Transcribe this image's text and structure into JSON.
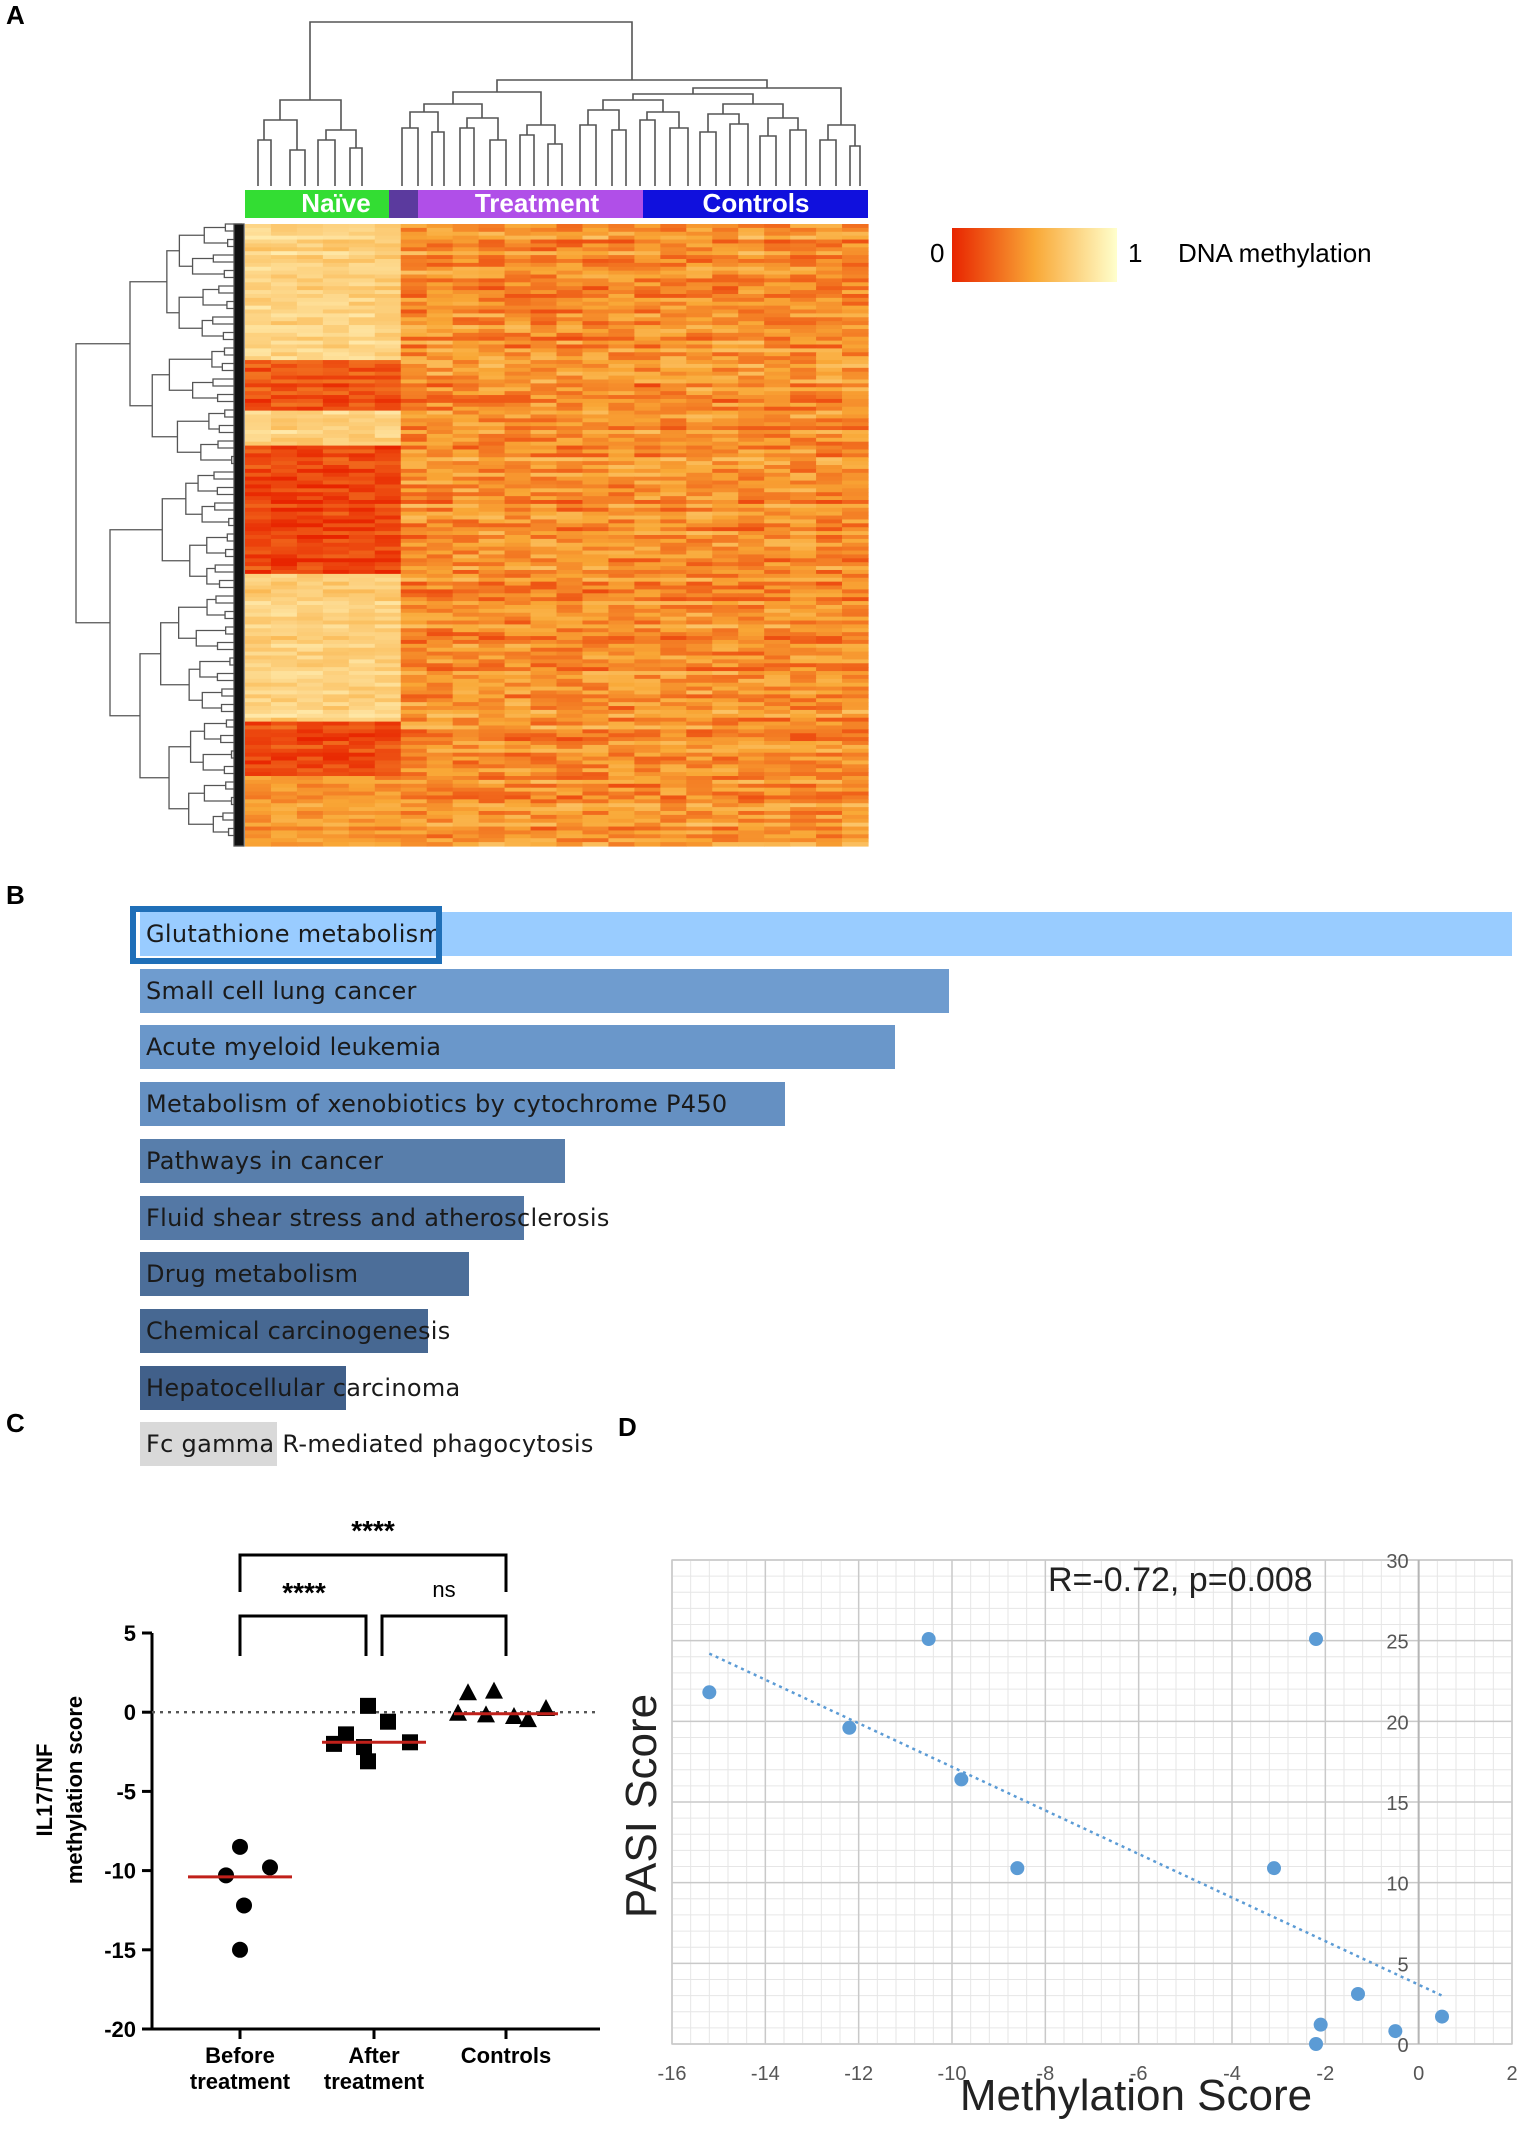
{
  "panels": {
    "a": "A",
    "b": "B",
    "c": "C",
    "d": "D"
  },
  "chart_data": [
    {
      "type": "heatmap",
      "panel": "A",
      "groups": [
        "Naïve",
        "Treatment",
        "Controls"
      ],
      "group_colors": [
        "#33dd33",
        "#b04fe8",
        "#1010dd"
      ],
      "legend": {
        "min_label": "0",
        "max_label": "1",
        "title": "DNA methylation"
      },
      "colorscale": [
        "#e82400",
        "#f9a836",
        "#ffff66"
      ]
    },
    {
      "type": "bar",
      "panel": "B",
      "orientation": "horizontal",
      "categories": [
        "Glutathione metabolism",
        "Small cell lung cancer",
        "Acute myeloid leukemia",
        "Metabolism of xenobiotics by cytochrome P450",
        "Pathways in cancer",
        "Fluid shear stress and atherosclerosis",
        "Drug metabolism",
        "Chemical carcinogenesis",
        "Hepatocellular carcinoma",
        "Fc gamma R-mediated phagocytosis"
      ],
      "values": [
        100,
        59,
        55,
        47,
        31,
        28,
        24,
        21,
        15,
        10
      ],
      "colors": [
        "#99ccff",
        "#6f9ccf",
        "#6a97ca",
        "#6590c2",
        "#587eab",
        "#5478a5",
        "#4c6e99",
        "#476892",
        "#41608a",
        "#d9d9d9"
      ],
      "highlighted": "Glutathione metabolism"
    },
    {
      "type": "scatter",
      "panel": "C",
      "ylabel_line1": "IL17/TNF",
      "ylabel_line2": "methylation score",
      "ylim": [
        -20,
        5
      ],
      "yticks": [
        "5",
        "0",
        "-5",
        "-10",
        "-15",
        "-20"
      ],
      "yticks_values": [
        5,
        0,
        -5,
        -10,
        -15,
        -20
      ],
      "groups": [
        {
          "label1": "Before",
          "label2": "treatment",
          "marker": "circle",
          "values": [
            -8.5,
            -9.8,
            -10.3,
            -12.2,
            -15.0
          ],
          "median": -10.4
        },
        {
          "label1": "After",
          "label2": "treatment",
          "marker": "square",
          "values": [
            0.4,
            -0.6,
            -1.4,
            -2.0,
            -1.9,
            -2.2,
            -3.1
          ],
          "median": -1.9
        },
        {
          "label1": "Controls",
          "label2": "",
          "marker": "triangle",
          "values": [
            1.2,
            1.3,
            -0.1,
            -0.2,
            -0.5,
            -0.3,
            0.2
          ],
          "median": -0.1
        }
      ],
      "significance": [
        {
          "pair": [
            "Before",
            "Controls"
          ],
          "label": "****"
        },
        {
          "pair": [
            "Before",
            "After"
          ],
          "label": "****"
        },
        {
          "pair": [
            "After",
            "Controls"
          ],
          "label": "ns"
        }
      ]
    },
    {
      "type": "scatter",
      "panel": "D",
      "xlabel": "Methylation Score",
      "ylabel": "PASI Score",
      "annotation": "R=-0.72, p=0.008",
      "xlim": [
        -16,
        2
      ],
      "ylim": [
        0,
        30
      ],
      "xticks": [
        "-16",
        "-14",
        "-12",
        "-10",
        "-8",
        "-6",
        "-4",
        "-2",
        "0",
        "2"
      ],
      "xticks_values": [
        -16,
        -14,
        -12,
        -10,
        -8,
        -6,
        -4,
        -2,
        0,
        2
      ],
      "yticks": [
        "0",
        "5",
        "10",
        "15",
        "20",
        "25",
        "30"
      ],
      "yticks_values": [
        0,
        5,
        10,
        15,
        20,
        25,
        30
      ],
      "x": [
        -15.2,
        -12.2,
        -10.5,
        -9.8,
        -8.6,
        -3.1,
        -2.2,
        -2.2,
        -2.1,
        -1.3,
        -0.5,
        0.5
      ],
      "y": [
        21.8,
        19.6,
        25.1,
        16.4,
        10.9,
        10.9,
        25.1,
        0.0,
        1.2,
        3.1,
        0.8,
        1.7
      ],
      "trendline": {
        "x": [
          -15.2,
          0.5
        ],
        "y": [
          24.2,
          3.0
        ]
      },
      "point_color": "#5b9bd5"
    }
  ]
}
